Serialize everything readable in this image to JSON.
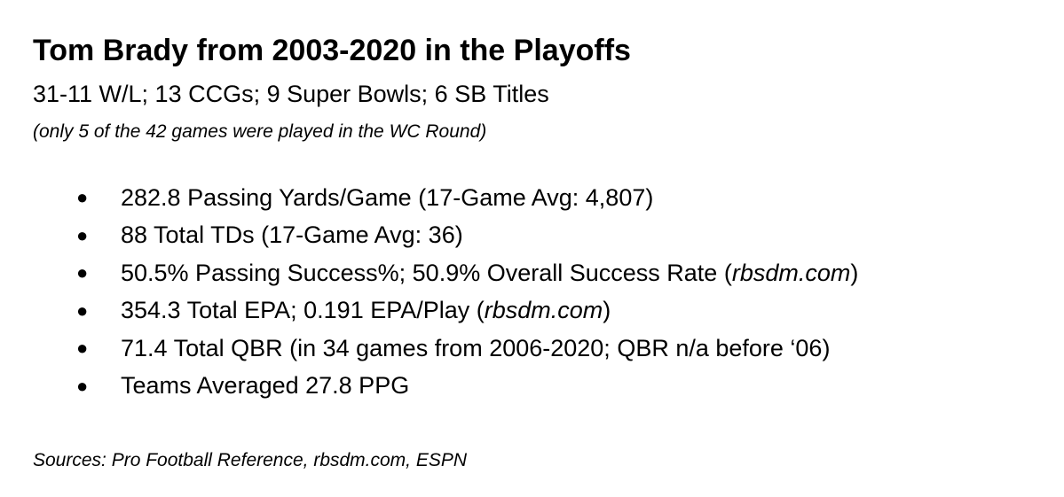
{
  "title": "Tom Brady from 2003-2020 in the Playoffs",
  "subtitle": "31-11 W/L; 13 CCGs; 9 Super Bowls; 6 SB Titles",
  "note": "(only 5 of the 42 games were played in the WC Round)",
  "bullet_glyph": "●",
  "stats": [
    {
      "text": "282.8 Passing Yards/Game (17-Game Avg: 4,807)",
      "source": "",
      "suffix": ""
    },
    {
      "text": "88 Total TDs (17-Game Avg: 36)",
      "source": "",
      "suffix": ""
    },
    {
      "text": "50.5% Passing Success%; 50.9% Overall Success Rate (",
      "source": "rbsdm.com",
      "suffix": ")"
    },
    {
      "text": "354.3 Total EPA; 0.191 EPA/Play (",
      "source": "rbsdm.com",
      "suffix": ")"
    },
    {
      "text": "71.4 Total QBR (in 34 games from 2006-2020; QBR n/a before ‘06)",
      "source": "",
      "suffix": ""
    },
    {
      "text": "Teams Averaged 27.8 PPG",
      "source": "",
      "suffix": ""
    }
  ],
  "sources": "Sources: Pro Football Reference, rbsdm.com, ESPN"
}
